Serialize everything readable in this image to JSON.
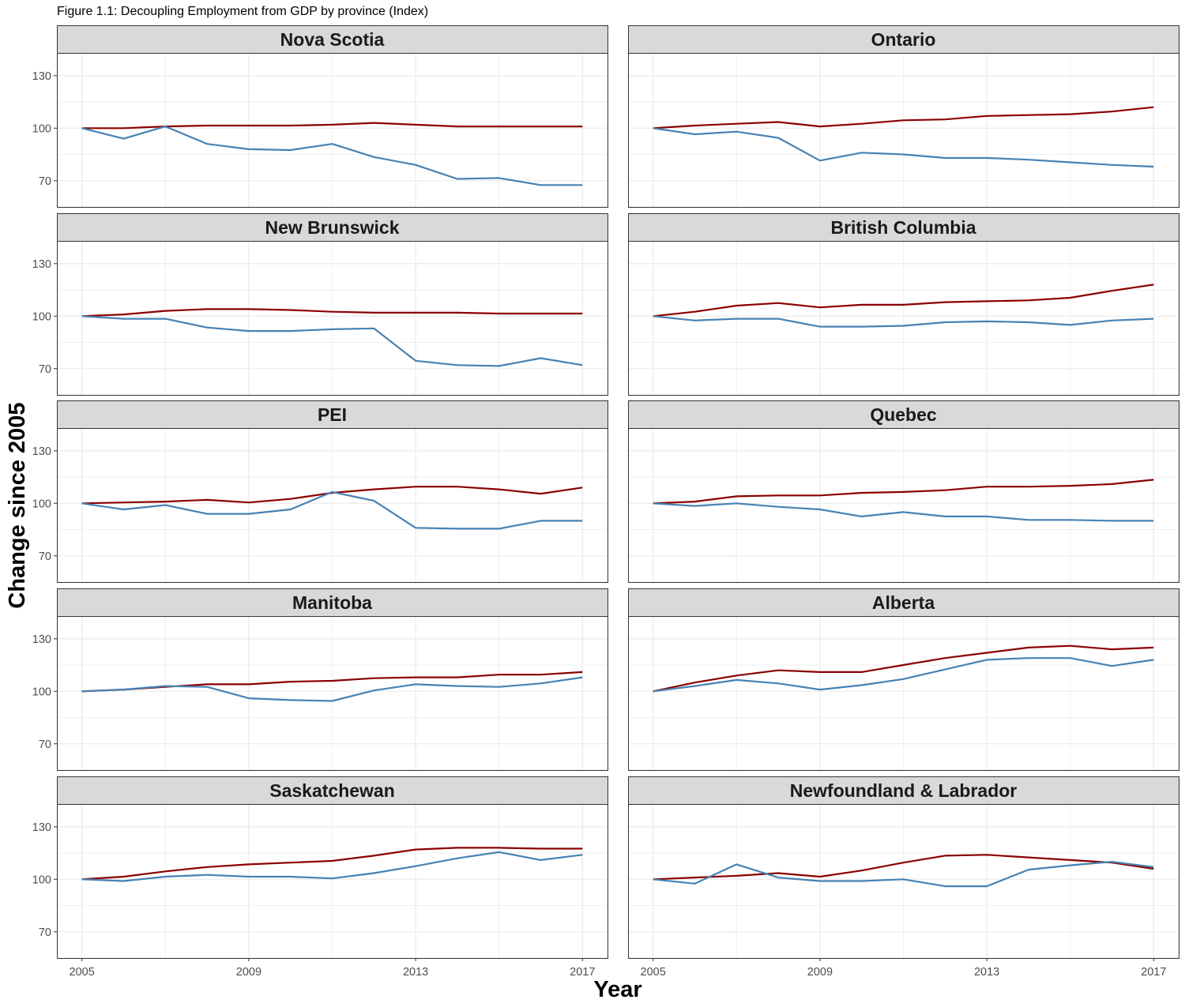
{
  "title": "Figure 1.1: Decoupling Employment from GDP by province (Index)",
  "colors": {
    "gdp": "#8B0000",
    "employment": "#4682B4",
    "strip_bg": "#D9D9D9",
    "grid": "#EBEBEB"
  },
  "chart_data": {
    "type": "line",
    "title": "Figure 1.1: Decoupling Employment from GDP by province (Index)",
    "xlabel": "Year",
    "ylabel": "Change since 2005",
    "x": [
      2005,
      2006,
      2007,
      2008,
      2009,
      2010,
      2011,
      2012,
      2013,
      2014,
      2015,
      2016,
      2017
    ],
    "xticks": [
      2005,
      2009,
      2013,
      2017
    ],
    "yticks": [
      70,
      100,
      130
    ],
    "ylim": [
      55,
      143
    ],
    "xlim": [
      2004.4,
      2017.6
    ],
    "grid": true,
    "legend": "none",
    "panels": [
      {
        "name": "Nova Scotia",
        "series": [
          {
            "color": "#8B0000",
            "values": [
              100,
              100,
              101,
              101.5,
              101.5,
              101.5,
              102,
              103,
              102,
              101,
              101,
              101,
              101
            ]
          },
          {
            "color": "#4682B4",
            "values": [
              100,
              94,
              101,
              91,
              88,
              87.5,
              91,
              83.5,
              79,
              71,
              71.5,
              67.5,
              67.5
            ]
          }
        ]
      },
      {
        "name": "Ontario",
        "series": [
          {
            "color": "#8B0000",
            "values": [
              100,
              101.5,
              102.5,
              103.5,
              101,
              102.5,
              104.5,
              105,
              107,
              107.5,
              108,
              109.5,
              112
            ]
          },
          {
            "color": "#4682B4",
            "values": [
              100,
              96.5,
              98,
              94.5,
              81.5,
              86,
              85,
              83,
              83,
              82,
              80.5,
              79,
              78
            ]
          }
        ]
      },
      {
        "name": "New Brunswick",
        "series": [
          {
            "color": "#8B0000",
            "values": [
              100,
              101,
              103,
              104,
              104,
              103.5,
              102.5,
              102,
              102,
              102,
              101.5,
              101.5,
              101.5
            ]
          },
          {
            "color": "#4682B4",
            "values": [
              100,
              98.5,
              98.5,
              93.5,
              91.5,
              91.5,
              92.5,
              93,
              74.5,
              72,
              71.5,
              76,
              72
            ]
          }
        ]
      },
      {
        "name": "British Columbia",
        "series": [
          {
            "color": "#8B0000",
            "values": [
              100,
              102.5,
              106,
              107.5,
              105,
              106.5,
              106.5,
              108,
              108.5,
              109,
              110.5,
              114.5,
              118
            ]
          },
          {
            "color": "#4682B4",
            "values": [
              100,
              97.5,
              98.5,
              98.5,
              94,
              94,
              94.5,
              96.5,
              97,
              96.5,
              95,
              97.5,
              98.5
            ]
          }
        ]
      },
      {
        "name": "PEI",
        "series": [
          {
            "color": "#8B0000",
            "values": [
              100,
              100.5,
              101,
              102,
              100.5,
              102.5,
              106,
              108,
              109.5,
              109.5,
              108,
              105.5,
              109
            ]
          },
          {
            "color": "#4682B4",
            "values": [
              100,
              96.5,
              99,
              94,
              94,
              96.5,
              106.5,
              101.5,
              86,
              85.5,
              85.5,
              90,
              90
            ]
          }
        ]
      },
      {
        "name": "Quebec",
        "series": [
          {
            "color": "#8B0000",
            "values": [
              100,
              101,
              104,
              104.5,
              104.5,
              106,
              106.5,
              107.5,
              109.5,
              109.5,
              110,
              111,
              113.5
            ]
          },
          {
            "color": "#4682B4",
            "values": [
              100,
              98.5,
              100,
              98,
              96.5,
              92.5,
              95,
              92.5,
              92.5,
              90.5,
              90.5,
              90,
              90
            ]
          }
        ]
      },
      {
        "name": "Manitoba",
        "series": [
          {
            "color": "#8B0000",
            "values": [
              100,
              101,
              102.5,
              104,
              104,
              105.5,
              106,
              107.5,
              108,
              108,
              109.5,
              109.5,
              111
            ]
          },
          {
            "color": "#4682B4",
            "values": [
              100,
              101,
              103,
              102.5,
              96,
              95,
              94.5,
              100.5,
              104,
              103,
              102.5,
              104.5,
              108
            ]
          }
        ]
      },
      {
        "name": "Alberta",
        "series": [
          {
            "color": "#8B0000",
            "values": [
              100,
              105,
              109,
              112,
              111,
              111,
              115,
              119,
              122,
              125,
              126,
              124,
              125
            ]
          },
          {
            "color": "#4682B4",
            "values": [
              100,
              103,
              106.5,
              104.5,
              101,
              103.5,
              107,
              112.5,
              118,
              119,
              119,
              114.5,
              118
            ]
          }
        ]
      },
      {
        "name": "Saskatchewan",
        "series": [
          {
            "color": "#8B0000",
            "values": [
              100,
              101.5,
              104.5,
              107,
              108.5,
              109.5,
              110.5,
              113.5,
              117,
              118,
              118,
              117.5,
              117.5
            ]
          },
          {
            "color": "#4682B4",
            "values": [
              100,
              99,
              101.5,
              102.5,
              101.5,
              101.5,
              100.5,
              103.5,
              107.5,
              112,
              115.5,
              111,
              114
            ]
          }
        ]
      },
      {
        "name": "Newfoundland & Labrador",
        "series": [
          {
            "color": "#8B0000",
            "values": [
              100,
              101,
              102,
              103.5,
              101.5,
              105,
              109.5,
              113.5,
              114,
              112.5,
              111,
              109.5,
              106
            ]
          },
          {
            "color": "#4682B4",
            "values": [
              100,
              97.5,
              108.5,
              101,
              99,
              99,
              100,
              96,
              96,
              105.5,
              108,
              110,
              107
            ]
          }
        ]
      }
    ]
  }
}
